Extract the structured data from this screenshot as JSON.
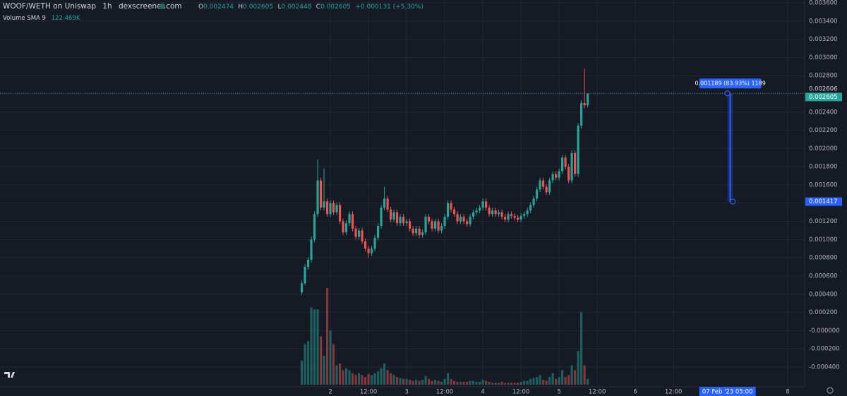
{
  "chart_data": {
    "type": "candlestick",
    "title": "WOOF/WETH on Uniswap",
    "interval": "1h",
    "source": "dexscreener.com",
    "legend_keys": [
      "O",
      "H",
      "L",
      "C"
    ],
    "change_label": "+0.000131 (+5.30%)",
    "volume_label": "Volume SMA 9",
    "volume_sma_label": "122.469K",
    "x": [
      -9,
      -8,
      -7,
      -6,
      -5,
      -4,
      -3,
      -2,
      -1,
      0,
      1,
      2,
      3,
      4,
      5,
      6,
      7,
      8,
      9,
      10,
      11,
      12,
      13,
      14,
      15,
      16,
      17,
      18,
      19,
      20,
      21,
      22,
      23,
      24,
      25,
      26,
      27,
      28,
      29,
      30,
      31,
      32,
      33,
      34,
      35,
      36,
      37,
      38,
      39,
      40,
      41,
      42,
      43,
      44,
      45,
      46,
      47,
      48,
      49,
      50,
      51,
      52,
      53,
      54,
      55,
      56,
      57,
      58,
      59,
      60,
      61,
      62,
      63,
      64,
      65,
      66,
      67,
      68,
      69,
      70,
      71,
      72,
      73,
      74,
      75,
      76,
      77,
      78,
      79,
      80,
      81
    ],
    "open": [
      0.00042,
      0.00052,
      0.0007,
      0.00078,
      0.001,
      0.00128,
      0.00165,
      0.00135,
      0.00142,
      0.00128,
      0.0014,
      0.0013,
      0.00138,
      0.0012,
      0.00108,
      0.00118,
      0.00128,
      0.00112,
      0.00103,
      0.0011,
      0.00098,
      0.0009,
      0.00085,
      0.0009,
      0.00102,
      0.00115,
      0.00135,
      0.00145,
      0.00133,
      0.00122,
      0.0013,
      0.00118,
      0.00125,
      0.00118,
      0.0012,
      0.00112,
      0.00107,
      0.00112,
      0.00105,
      0.00108,
      0.00125,
      0.0012,
      0.00112,
      0.0012,
      0.0011,
      0.00115,
      0.00125,
      0.0014,
      0.00133,
      0.00128,
      0.0012,
      0.00125,
      0.0012,
      0.00117,
      0.00125,
      0.0013,
      0.00132,
      0.00135,
      0.00142,
      0.00135,
      0.00128,
      0.00132,
      0.00128,
      0.0013,
      0.00125,
      0.00122,
      0.00128,
      0.00126,
      0.00124,
      0.00122,
      0.00126,
      0.00128,
      0.00132,
      0.00138,
      0.00145,
      0.00155,
      0.00165,
      0.00158,
      0.00152,
      0.00165,
      0.00172,
      0.00168,
      0.00175,
      0.0019,
      0.0018,
      0.00165,
      0.00195,
      0.00172,
      0.00225,
      0.0025,
      0.002474
    ],
    "high": [
      0.00055,
      0.00073,
      0.00081,
      0.00103,
      0.00131,
      0.00188,
      0.00168,
      0.00178,
      0.00145,
      0.00143,
      0.00143,
      0.00141,
      0.00141,
      0.00123,
      0.00121,
      0.00131,
      0.00131,
      0.00115,
      0.00113,
      0.00113,
      0.00101,
      0.00093,
      0.00093,
      0.00105,
      0.00118,
      0.00138,
      0.00158,
      0.00148,
      0.00136,
      0.00133,
      0.00133,
      0.00128,
      0.00128,
      0.00123,
      0.00123,
      0.00115,
      0.00115,
      0.00115,
      0.00111,
      0.00128,
      0.00128,
      0.00123,
      0.00123,
      0.00123,
      0.00118,
      0.00128,
      0.00143,
      0.00143,
      0.00136,
      0.00131,
      0.00128,
      0.00128,
      0.00123,
      0.00128,
      0.00133,
      0.00135,
      0.00138,
      0.00145,
      0.00145,
      0.00138,
      0.00135,
      0.00135,
      0.00133,
      0.00133,
      0.00128,
      0.00131,
      0.00131,
      0.00129,
      0.00127,
      0.00129,
      0.00131,
      0.00135,
      0.00141,
      0.00148,
      0.00158,
      0.00168,
      0.00168,
      0.00161,
      0.00168,
      0.00175,
      0.00175,
      0.00178,
      0.00193,
      0.00193,
      0.00183,
      0.00198,
      0.00198,
      0.00228,
      0.00253,
      0.00288,
      0.002605
    ],
    "low": [
      0.00039,
      0.0005,
      0.00067,
      0.00075,
      0.00097,
      0.00125,
      0.00132,
      0.00132,
      0.00125,
      0.00125,
      0.00127,
      0.00127,
      0.00117,
      0.00105,
      0.00105,
      0.00115,
      0.00109,
      0.001,
      0.001,
      0.00095,
      0.00087,
      0.0008,
      0.00082,
      0.00087,
      0.00099,
      0.00112,
      0.00132,
      0.0013,
      0.00119,
      0.00119,
      0.00115,
      0.00115,
      0.00115,
      0.00115,
      0.00109,
      0.00104,
      0.00104,
      0.00102,
      0.00102,
      0.00105,
      0.00117,
      0.00109,
      0.00109,
      0.00107,
      0.00107,
      0.00112,
      0.00122,
      0.0013,
      0.00125,
      0.00117,
      0.00117,
      0.00117,
      0.00114,
      0.00114,
      0.00122,
      0.00127,
      0.00129,
      0.00132,
      0.00132,
      0.00125,
      0.00125,
      0.00125,
      0.00125,
      0.00122,
      0.00119,
      0.00119,
      0.00123,
      0.00121,
      0.00119,
      0.00119,
      0.00123,
      0.00125,
      0.00129,
      0.00135,
      0.00142,
      0.00152,
      0.00155,
      0.00149,
      0.00149,
      0.00162,
      0.00165,
      0.00165,
      0.00172,
      0.00177,
      0.00162,
      0.00162,
      0.00169,
      0.00169,
      0.00222,
      0.00244,
      0.002448
    ],
    "close": [
      0.00052,
      0.0007,
      0.00078,
      0.001,
      0.00128,
      0.00165,
      0.00135,
      0.00142,
      0.00128,
      0.0014,
      0.0013,
      0.00138,
      0.0012,
      0.00108,
      0.00118,
      0.00128,
      0.00112,
      0.00103,
      0.0011,
      0.00098,
      0.0009,
      0.00085,
      0.0009,
      0.00102,
      0.00115,
      0.00135,
      0.00145,
      0.00133,
      0.00122,
      0.0013,
      0.00118,
      0.00125,
      0.00118,
      0.0012,
      0.00112,
      0.00107,
      0.00112,
      0.00105,
      0.00108,
      0.00125,
      0.0012,
      0.00112,
      0.0012,
      0.0011,
      0.00115,
      0.00125,
      0.0014,
      0.00133,
      0.00128,
      0.0012,
      0.00125,
      0.0012,
      0.00117,
      0.00125,
      0.0013,
      0.00132,
      0.00135,
      0.00142,
      0.00135,
      0.00128,
      0.00132,
      0.00128,
      0.0013,
      0.00125,
      0.00122,
      0.00128,
      0.00126,
      0.00124,
      0.00122,
      0.00126,
      0.00128,
      0.00132,
      0.00138,
      0.00145,
      0.00155,
      0.00165,
      0.00158,
      0.00152,
      0.00165,
      0.00172,
      0.00168,
      0.00175,
      0.0019,
      0.0018,
      0.00165,
      0.00195,
      0.00172,
      0.00225,
      0.0025,
      0.002474,
      0.002605
    ],
    "volume": [
      250,
      420,
      450,
      800,
      780,
      780,
      500,
      300,
      1000,
      560,
      420,
      200,
      220,
      150,
      170,
      150,
      120,
      100,
      120,
      100,
      80,
      110,
      100,
      120,
      140,
      170,
      220,
      150,
      120,
      100,
      80,
      70,
      60,
      60,
      50,
      40,
      50,
      40,
      50,
      90,
      60,
      40,
      50,
      40,
      30,
      60,
      120,
      60,
      40,
      30,
      30,
      30,
      30,
      40,
      40,
      30,
      30,
      50,
      40,
      30,
      20,
      20,
      20,
      30,
      20,
      20,
      20,
      20,
      20,
      30,
      40,
      40,
      60,
      70,
      80,
      100,
      50,
      40,
      80,
      120,
      60,
      80,
      150,
      80,
      100,
      200,
      150,
      350,
      750,
      200,
      60
    ],
    "up_color": "#26a69a",
    "down_color": "#ef5350",
    "xlim": [
      -104,
      149.3
    ],
    "xticks": [
      {
        "value": 0,
        "label": "2"
      },
      {
        "value": 12,
        "label": "12:00"
      },
      {
        "value": 24,
        "label": "3"
      },
      {
        "value": 36,
        "label": "12:00"
      },
      {
        "value": 48,
        "label": "4"
      },
      {
        "value": 60,
        "label": "12:00"
      },
      {
        "value": 72,
        "label": "5"
      },
      {
        "value": 84,
        "label": "12:00"
      },
      {
        "value": 96,
        "label": "6"
      },
      {
        "value": 108,
        "label": "12:00"
      },
      {
        "value": 144,
        "label": "8"
      }
    ],
    "ylim": [
      -0.000617,
      0.003631
    ],
    "yticks": [
      {
        "value": 0.0036,
        "label": "0.003600"
      },
      {
        "value": 0.0034,
        "label": "0.003400"
      },
      {
        "value": 0.0032,
        "label": "0.003200"
      },
      {
        "value": 0.003,
        "label": "0.003000"
      },
      {
        "value": 0.0028,
        "label": "0.002800"
      },
      {
        "value": 0.0026,
        "label": "0.002600"
      },
      {
        "value": 0.0024,
        "label": "0.002400"
      },
      {
        "value": 0.0022,
        "label": "0.002200"
      },
      {
        "value": 0.002,
        "label": "0.002000"
      },
      {
        "value": 0.0018,
        "label": "0.001800"
      },
      {
        "value": 0.0016,
        "label": "0.001600"
      },
      {
        "value": 0.0014,
        "label": "0.001400"
      },
      {
        "value": 0.0012,
        "label": "0.001200"
      },
      {
        "value": 0.001,
        "label": "0.001000"
      },
      {
        "value": 0.0008,
        "label": "0.000800"
      },
      {
        "value": 0.0006,
        "label": "0.000600"
      },
      {
        "value": 0.0004,
        "label": "0.000400"
      },
      {
        "value": 0.0002,
        "label": "0.000200"
      },
      {
        "value": 0,
        "label": "-0.000000"
      },
      {
        "value": -0.0002,
        "label": "-0.000200"
      },
      {
        "value": -0.0004,
        "label": "-0.000400"
      }
    ],
    "grid": true,
    "measure": {
      "x": [
        125,
        126.7
      ],
      "from": 0.001417,
      "to": 0.002606,
      "label": "0.001189 (83.93%) 1189",
      "x_label": "07 Feb '23 05:00"
    }
  }
}
